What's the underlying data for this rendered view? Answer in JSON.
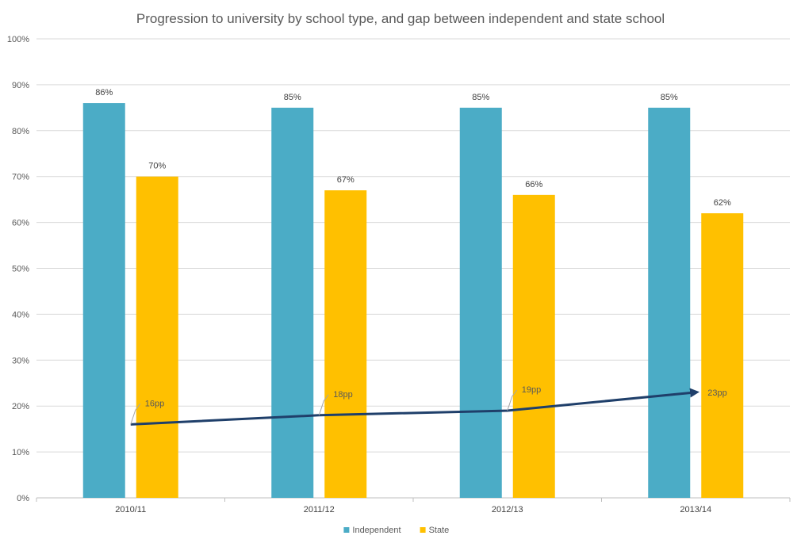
{
  "chart_data": {
    "type": "bar",
    "title": "Progression to university by school type, and gap between independent and state school",
    "xlabel": "",
    "ylabel": "",
    "ylim": [
      0,
      100
    ],
    "y_ticks": [
      "0%",
      "10%",
      "20%",
      "30%",
      "40%",
      "50%",
      "60%",
      "70%",
      "80%",
      "90%",
      "100%"
    ],
    "categories": [
      "2010/11",
      "2011/12",
      "2012/13",
      "2013/14"
    ],
    "series": [
      {
        "name": "Independent",
        "color": "#4bacc6",
        "values": [
          86,
          85,
          85,
          85
        ],
        "labels": [
          "86%",
          "85%",
          "85%",
          "85%"
        ]
      },
      {
        "name": "State",
        "color": "#ffc000",
        "values": [
          70,
          67,
          66,
          62
        ],
        "labels": [
          "70%",
          "67%",
          "66%",
          "62%"
        ]
      }
    ],
    "gap": {
      "color": "#1f3f6a",
      "values": [
        16,
        18,
        19,
        23
      ],
      "labels": [
        "16pp",
        "18pp",
        "19pp",
        "23pp"
      ]
    },
    "grid": true,
    "legend_position": "bottom"
  }
}
